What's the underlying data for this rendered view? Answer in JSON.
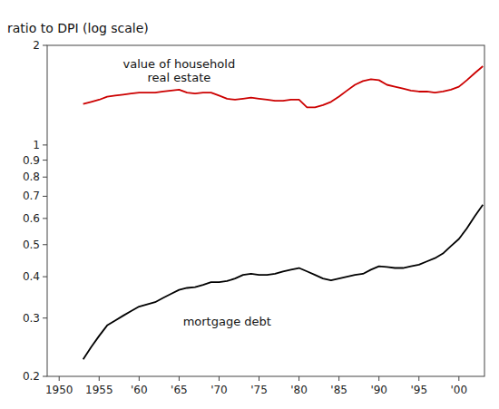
{
  "chart_data": {
    "type": "line",
    "y_label": "ratio to DPI (log scale)",
    "log": "y",
    "grid": false,
    "x": [
      1953,
      1954,
      1955,
      1956,
      1957,
      1958,
      1959,
      1960,
      1961,
      1962,
      1963,
      1964,
      1965,
      1966,
      1967,
      1968,
      1969,
      1970,
      1971,
      1972,
      1973,
      1974,
      1975,
      1976,
      1977,
      1978,
      1979,
      1980,
      1981,
      1982,
      1983,
      1984,
      1985,
      1986,
      1987,
      1988,
      1989,
      1990,
      1991,
      1992,
      1993,
      1994,
      1995,
      1996,
      1997,
      1998,
      1999,
      2000,
      2001,
      2002,
      2003
    ],
    "series": [
      {
        "color": "#cc0000",
        "values": [
          1.33,
          1.35,
          1.37,
          1.4,
          1.41,
          1.42,
          1.43,
          1.44,
          1.44,
          1.44,
          1.45,
          1.46,
          1.47,
          1.44,
          1.43,
          1.44,
          1.44,
          1.41,
          1.38,
          1.37,
          1.38,
          1.39,
          1.38,
          1.37,
          1.36,
          1.36,
          1.37,
          1.37,
          1.3,
          1.3,
          1.32,
          1.35,
          1.4,
          1.46,
          1.52,
          1.56,
          1.58,
          1.57,
          1.52,
          1.5,
          1.48,
          1.46,
          1.45,
          1.45,
          1.44,
          1.45,
          1.47,
          1.5,
          1.57,
          1.65,
          1.73
        ]
      },
      {
        "color": "#000000",
        "values": [
          0.225,
          0.245,
          0.265,
          0.285,
          0.295,
          0.305,
          0.315,
          0.325,
          0.33,
          0.335,
          0.345,
          0.355,
          0.365,
          0.37,
          0.372,
          0.378,
          0.385,
          0.385,
          0.388,
          0.395,
          0.405,
          0.408,
          0.405,
          0.405,
          0.408,
          0.415,
          0.42,
          0.425,
          0.415,
          0.405,
          0.395,
          0.39,
          0.395,
          0.4,
          0.405,
          0.408,
          0.42,
          0.43,
          0.428,
          0.425,
          0.425,
          0.43,
          0.435,
          0.445,
          0.455,
          0.47,
          0.495,
          0.52,
          0.56,
          0.61,
          0.66
        ]
      }
    ],
    "xlim": [
      1948.5,
      2003.2
    ],
    "xticks": [
      1950,
      1955,
      {
        "value": 1960,
        "label": "'60"
      },
      {
        "value": 1965,
        "label": "'65"
      },
      {
        "value": 1970,
        "label": "'70"
      },
      {
        "value": 1975,
        "label": "'75"
      },
      {
        "value": 1980,
        "label": "'80"
      },
      {
        "value": 1985,
        "label": "'85"
      },
      {
        "value": 1990,
        "label": "'90"
      },
      {
        "value": 1995,
        "label": "'95"
      },
      {
        "value": 2000,
        "label": "'00"
      }
    ],
    "ylim": [
      0.2,
      2.0
    ],
    "yticks": [
      0.2,
      0.3,
      0.4,
      0.5,
      0.6,
      0.7,
      0.8,
      0.9,
      1,
      2
    ],
    "annotations": [
      {
        "text": [
          "value of household",
          "real estate"
        ],
        "x": 1965,
        "y": 1.52
      },
      {
        "text": [
          "mortgage debt"
        ],
        "x": 1971,
        "y": 0.31
      }
    ]
  }
}
